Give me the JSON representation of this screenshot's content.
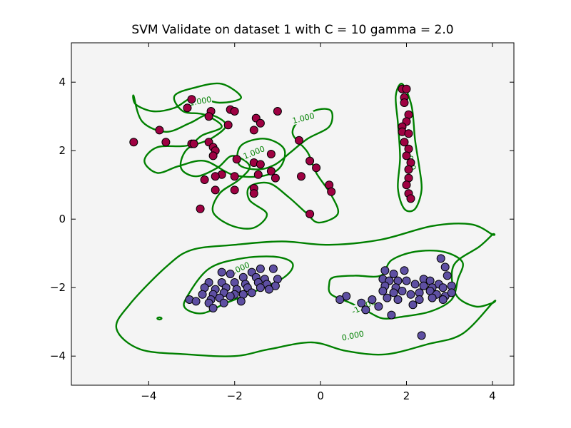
{
  "chart_data": {
    "type": "scatter",
    "title": "SVM Validate on dataset 1 with C = 10 gamma = 2.0",
    "xlabel": "",
    "ylabel": "",
    "xlim": [
      -5.8,
      4.5
    ],
    "ylim": [
      -4.85,
      5.15
    ],
    "x_ticks": [
      -4,
      -2,
      0,
      2,
      4
    ],
    "x_tick_labels": [
      "−4",
      "−2",
      "0",
      "2",
      "4"
    ],
    "y_ticks": [
      -4,
      -2,
      0,
      2,
      4
    ],
    "y_tick_labels": [
      "−4",
      "−2",
      "0",
      "2",
      "4"
    ],
    "grid": false,
    "legend": false,
    "background": "#f4f4f4",
    "colors": {
      "positive": "#9e0142",
      "negative": "#5e4fa2",
      "boundary": "#008000"
    },
    "series": [
      {
        "color": "#9e0142",
        "points": [
          [
            -3.0,
            3.5
          ],
          [
            -3.1,
            3.25
          ],
          [
            -2.55,
            3.15
          ],
          [
            -2.6,
            3.0
          ],
          [
            -2.1,
            3.2
          ],
          [
            -2.0,
            3.15
          ],
          [
            -1.5,
            2.95
          ],
          [
            -1.4,
            2.8
          ],
          [
            -1.0,
            3.15
          ],
          [
            -2.15,
            2.75
          ],
          [
            -3.75,
            2.6
          ],
          [
            -4.35,
            2.25
          ],
          [
            -3.6,
            2.25
          ],
          [
            -3.0,
            2.2
          ],
          [
            -2.95,
            2.2
          ],
          [
            -2.6,
            2.25
          ],
          [
            -2.5,
            2.1
          ],
          [
            -2.45,
            2.0
          ],
          [
            -2.5,
            1.85
          ],
          [
            -1.95,
            1.75
          ],
          [
            -1.55,
            1.65
          ],
          [
            -1.4,
            1.6
          ],
          [
            -1.15,
            1.9
          ],
          [
            -1.15,
            1.4
          ],
          [
            -1.45,
            1.3
          ],
          [
            -1.05,
            1.2
          ],
          [
            -2.3,
            1.3
          ],
          [
            -2.45,
            1.25
          ],
          [
            -2.0,
            1.25
          ],
          [
            -2.7,
            1.15
          ],
          [
            -2.45,
            0.85
          ],
          [
            -2.0,
            0.85
          ],
          [
            -1.55,
            0.9
          ],
          [
            -1.55,
            0.75
          ],
          [
            -2.8,
            0.3
          ],
          [
            -0.5,
            2.3
          ],
          [
            -0.25,
            1.7
          ],
          [
            -0.1,
            1.5
          ],
          [
            -0.45,
            1.25
          ],
          [
            0.2,
            1.0
          ],
          [
            0.25,
            0.8
          ],
          [
            -0.25,
            0.15
          ],
          [
            -1.55,
            2.6
          ],
          [
            1.9,
            3.8
          ],
          [
            2.0,
            3.8
          ],
          [
            1.95,
            3.55
          ],
          [
            1.95,
            3.4
          ],
          [
            2.05,
            3.05
          ],
          [
            2.0,
            2.85
          ],
          [
            1.9,
            2.7
          ],
          [
            1.9,
            2.55
          ],
          [
            2.05,
            2.5
          ],
          [
            1.95,
            2.25
          ],
          [
            2.05,
            2.05
          ],
          [
            2.0,
            1.85
          ],
          [
            2.1,
            1.65
          ],
          [
            2.05,
            1.45
          ],
          [
            2.05,
            1.2
          ],
          [
            2.0,
            1.0
          ],
          [
            2.05,
            0.75
          ],
          [
            2.1,
            0.6
          ]
        ]
      },
      {
        "color": "#5e4fa2",
        "points": [
          [
            -2.3,
            -1.55
          ],
          [
            -2.1,
            -1.6
          ],
          [
            -1.8,
            -1.7
          ],
          [
            -1.6,
            -1.55
          ],
          [
            -1.4,
            -1.45
          ],
          [
            -1.1,
            -1.45
          ],
          [
            -1.5,
            -1.7
          ],
          [
            -1.3,
            -1.75
          ],
          [
            -1.0,
            -1.75
          ],
          [
            -2.6,
            -1.85
          ],
          [
            -2.3,
            -1.85
          ],
          [
            -2.0,
            -1.85
          ],
          [
            -1.75,
            -1.9
          ],
          [
            -1.45,
            -1.85
          ],
          [
            -1.25,
            -1.9
          ],
          [
            -1.05,
            -1.95
          ],
          [
            -2.7,
            -2.0
          ],
          [
            -2.45,
            -2.05
          ],
          [
            -2.2,
            -2.0
          ],
          [
            -1.95,
            -2.05
          ],
          [
            -1.7,
            -2.0
          ],
          [
            -1.4,
            -2.0
          ],
          [
            -1.2,
            -2.05
          ],
          [
            -2.75,
            -2.2
          ],
          [
            -2.5,
            -2.2
          ],
          [
            -2.25,
            -2.15
          ],
          [
            -2.0,
            -2.2
          ],
          [
            -1.8,
            -2.2
          ],
          [
            -1.6,
            -2.15
          ],
          [
            -2.55,
            -2.35
          ],
          [
            -2.35,
            -2.3
          ],
          [
            -2.1,
            -2.25
          ],
          [
            -3.05,
            -2.35
          ],
          [
            -2.9,
            -2.4
          ],
          [
            -2.6,
            -2.45
          ],
          [
            -2.25,
            -2.45
          ],
          [
            -2.5,
            -2.6
          ],
          [
            -1.85,
            -2.4
          ],
          [
            1.5,
            -1.5
          ],
          [
            1.7,
            -1.6
          ],
          [
            1.95,
            -1.5
          ],
          [
            2.8,
            -1.15
          ],
          [
            2.9,
            -1.4
          ],
          [
            1.45,
            -1.75
          ],
          [
            1.6,
            -1.8
          ],
          [
            1.8,
            -1.8
          ],
          [
            2.0,
            -1.8
          ],
          [
            2.4,
            -1.75
          ],
          [
            2.55,
            -1.8
          ],
          [
            2.75,
            -1.9
          ],
          [
            2.95,
            -1.65
          ],
          [
            1.5,
            -1.95
          ],
          [
            1.75,
            -2.0
          ],
          [
            2.2,
            -1.9
          ],
          [
            2.4,
            -1.95
          ],
          [
            2.6,
            -2.0
          ],
          [
            2.85,
            -2.0
          ],
          [
            3.05,
            -1.95
          ],
          [
            1.45,
            -2.1
          ],
          [
            1.7,
            -2.15
          ],
          [
            1.9,
            -2.1
          ],
          [
            2.1,
            -2.2
          ],
          [
            2.3,
            -2.15
          ],
          [
            2.55,
            -2.1
          ],
          [
            2.7,
            -2.2
          ],
          [
            2.9,
            -2.25
          ],
          [
            3.05,
            -2.15
          ],
          [
            1.55,
            -2.3
          ],
          [
            1.8,
            -2.35
          ],
          [
            2.6,
            -2.3
          ],
          [
            2.85,
            -2.35
          ],
          [
            2.15,
            -2.5
          ],
          [
            2.3,
            -2.35
          ],
          [
            1.2,
            -2.35
          ],
          [
            0.95,
            -2.45
          ],
          [
            0.6,
            -2.25
          ],
          [
            0.45,
            -2.35
          ],
          [
            1.05,
            -2.65
          ],
          [
            1.35,
            -2.55
          ],
          [
            1.65,
            -2.8
          ],
          [
            2.35,
            -3.4
          ]
        ]
      }
    ],
    "contour_labels": [
      {
        "text": "1.000",
        "x": -2.8,
        "y": 3.45,
        "angle": -10
      },
      {
        "text": "1.000",
        "x": -1.55,
        "y": 1.95,
        "angle": -22
      },
      {
        "text": "1.000",
        "x": -0.4,
        "y": 2.95,
        "angle": -14
      },
      {
        "text": "1.000",
        "x": 2.1,
        "y": 1.75,
        "angle": 75
      },
      {
        "text": "1.000",
        "x": -1.9,
        "y": -1.45,
        "angle": -25
      },
      {
        "text": "-1.000",
        "x": 1.0,
        "y": -2.55,
        "angle": -25
      },
      {
        "text": "0.000",
        "x": 0.75,
        "y": -3.4,
        "angle": -12
      }
    ]
  }
}
